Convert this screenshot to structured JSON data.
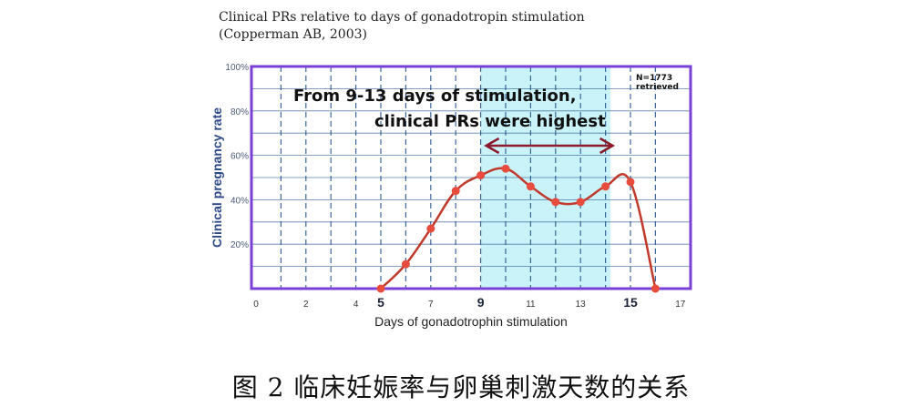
{
  "figure_caption": "图 2 临床妊娠率与卵巢刺激天数的关系",
  "chart_data": {
    "type": "line",
    "title": "Clinical PRs relative to days of gonadotropin stimulation",
    "subtitle": "(Copperman AB, 2003)",
    "xlabel": "Days of gonadotrophin stimulation",
    "ylabel": "Clinical pregnancy rate",
    "xlim": [
      0,
      17
    ],
    "ylim": [
      0,
      100
    ],
    "x_ticks": [
      {
        "value": 0,
        "label": "0",
        "bold": false
      },
      {
        "value": 2,
        "label": "2",
        "bold": false
      },
      {
        "value": 4,
        "label": "4",
        "bold": false
      },
      {
        "value": 5,
        "label": "5",
        "bold": true
      },
      {
        "value": 7,
        "label": "7",
        "bold": false
      },
      {
        "value": 9,
        "label": "9",
        "bold": true
      },
      {
        "value": 11,
        "label": "11",
        "bold": false
      },
      {
        "value": 13,
        "label": "13",
        "bold": false
      },
      {
        "value": 15,
        "label": "15",
        "bold": true
      },
      {
        "value": 17,
        "label": "17",
        "bold": false
      }
    ],
    "y_ticks": [
      {
        "value": 20,
        "label": "20%"
      },
      {
        "value": 40,
        "label": "40%"
      },
      {
        "value": 60,
        "label": "60%"
      },
      {
        "value": 80,
        "label": "80%"
      },
      {
        "value": 100,
        "label": "100%"
      }
    ],
    "grid": true,
    "series": [
      {
        "color": "#c0392b",
        "x": [
          5,
          6,
          7,
          8,
          9,
          10,
          11,
          12,
          13,
          14,
          15,
          16
        ],
        "y": [
          0,
          11,
          27,
          44,
          51,
          54,
          46,
          39,
          39,
          46,
          48,
          0
        ]
      }
    ],
    "highlight_range": [
      9,
      14.2
    ],
    "annotation": {
      "line1": "From 9-13 days of stimulation,",
      "line2": "clinical PRs were highest",
      "arrow_range": [
        9,
        14
      ]
    },
    "note": "N=1773 retrieved",
    "colors": {
      "frame": "#7a3fd6",
      "grid": "#1b4d8c",
      "axis_text": "#4a5b7a",
      "highlight": "#c9f3f9",
      "series": "#c0392b",
      "arrow": "#8b1a2b"
    }
  }
}
